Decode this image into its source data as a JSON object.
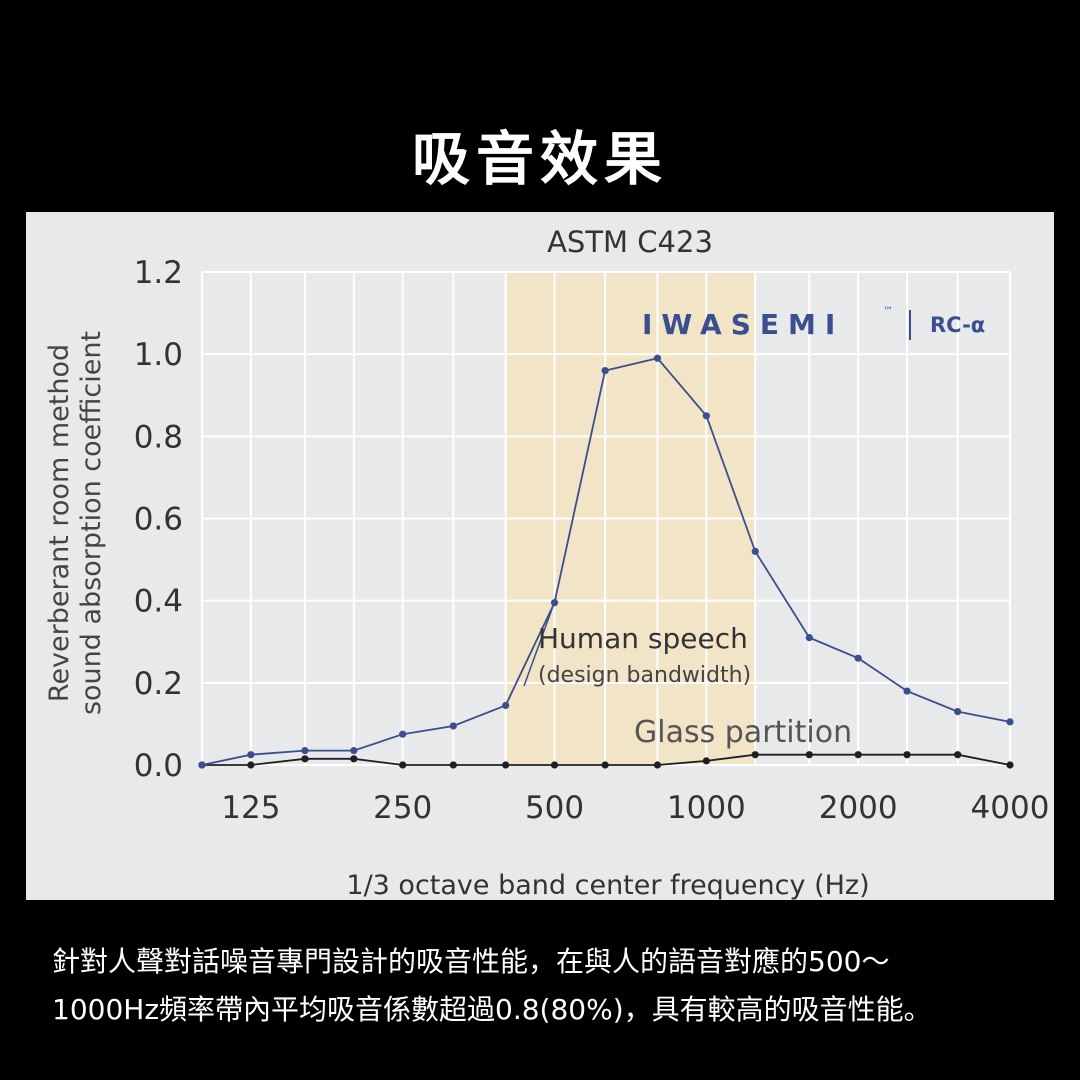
{
  "page_title": "吸音效果",
  "caption": {
    "line1": "針對人聲對話噪音專門設計的吸音性能，在與人的語音對應的500～",
    "line2": "1000Hz頻率帶內平均吸音係數超過0.8(80%)，具有較高的吸音性能。"
  },
  "logo": {
    "brand": "IWASEMI",
    "tm": "™",
    "model": "RC-α"
  },
  "colors": {
    "background": "#000000",
    "panel": "#e8e9eb",
    "band": "#f2e4c6",
    "series_main": "#3b4f8f",
    "series_glass": "#1f1f1f",
    "axis_text": "#333333"
  },
  "chart_data": {
    "type": "line",
    "title": "ASTM C423",
    "xlabel": "1/3 octave band center frequency (Hz)",
    "ylabel_line1": "Reverberant room method",
    "ylabel_line2": "sound absorption coefficient",
    "x_scale": "log",
    "x": [
      100,
      125,
      160,
      200,
      250,
      315,
      400,
      500,
      630,
      800,
      1000,
      1250,
      1600,
      2000,
      2500,
      3150,
      4000
    ],
    "x_ticks": [
      "125",
      "250",
      "500",
      "1000",
      "2000",
      "4000"
    ],
    "y_ticks": [
      "0.0",
      "0.2",
      "0.4",
      "0.6",
      "0.8",
      "1.0",
      "1.2"
    ],
    "ylim": [
      0,
      1.2
    ],
    "grid": true,
    "highlight_band": {
      "from": 400,
      "to": 1250
    },
    "series": [
      {
        "values": [
          0.0,
          0.025,
          0.035,
          0.035,
          0.075,
          0.095,
          0.145,
          0.395,
          0.96,
          0.99,
          0.85,
          0.52,
          0.31,
          0.26,
          0.18,
          0.13,
          0.105
        ]
      },
      {
        "values": [
          0.0,
          0.0,
          0.015,
          0.015,
          0.0,
          0.0,
          0.0,
          0.0,
          0.0,
          0.0,
          0.01,
          0.025,
          0.025,
          0.025,
          0.025,
          0.025,
          0.0
        ]
      }
    ],
    "annotations": {
      "speech_label": "Human speech",
      "speech_sublabel": "(design bandwidth)",
      "glass_label": "Glass partition"
    }
  }
}
